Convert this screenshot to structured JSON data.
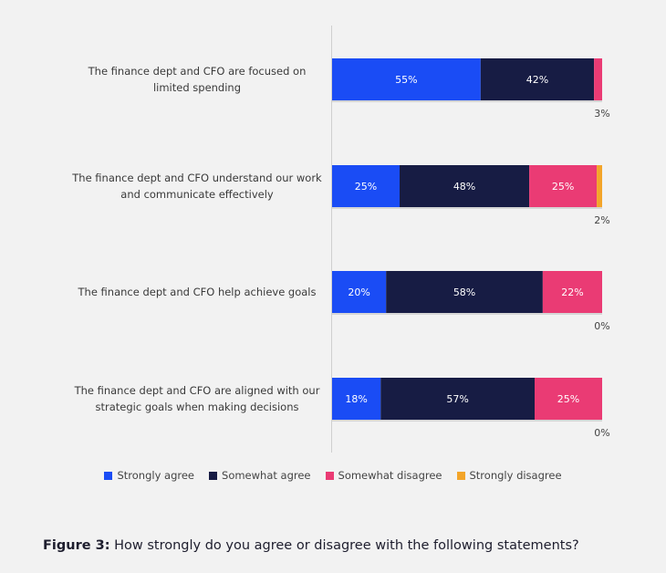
{
  "chart_data": {
    "type": "bar",
    "orientation": "horizontal",
    "stacked": true,
    "categories": [
      [
        "The finance dept and CFO are focused on",
        "limited spending"
      ],
      [
        "The finance dept and CFO understand our work",
        "and communicate effectively"
      ],
      [
        "The finance dept and CFO help achieve goals"
      ],
      [
        "The finance dept and CFO are aligned with our",
        "strategic goals when making decisions"
      ]
    ],
    "series": [
      {
        "name": "Strongly agree",
        "color": "#1a4cf5",
        "values": [
          55,
          25,
          20,
          18
        ]
      },
      {
        "name": "Somewhat agree",
        "color": "#171c44",
        "values": [
          42,
          48,
          58,
          57
        ]
      },
      {
        "name": "Somewhat disagree",
        "color": "#ea3b74",
        "values": [
          3,
          25,
          22,
          25
        ]
      },
      {
        "name": "Strongly disagree",
        "color": "#f3a52a",
        "values": [
          0,
          2,
          0,
          0
        ]
      }
    ],
    "segment_labels": [
      [
        "55%",
        "42%",
        "",
        ""
      ],
      [
        "25%",
        "48%",
        "25%",
        ""
      ],
      [
        "20%",
        "58%",
        "22%",
        ""
      ],
      [
        "18%",
        "57%",
        "25%",
        ""
      ]
    ],
    "outside_labels": [
      "3%",
      "2%",
      "0%",
      "0%"
    ],
    "xlim": [
      0,
      100
    ],
    "legend_position": "bottom"
  },
  "legend": [
    {
      "label": "Strongly agree",
      "color": "#1a4cf5"
    },
    {
      "label": "Somewhat agree",
      "color": "#171c44"
    },
    {
      "label": "Somewhat disagree",
      "color": "#ea3b74"
    },
    {
      "label": "Strongly disagree",
      "color": "#f3a52a"
    }
  ],
  "caption": {
    "prefix": "Figure 3:",
    "text": " How strongly do you agree or disagree with the following statements?"
  }
}
